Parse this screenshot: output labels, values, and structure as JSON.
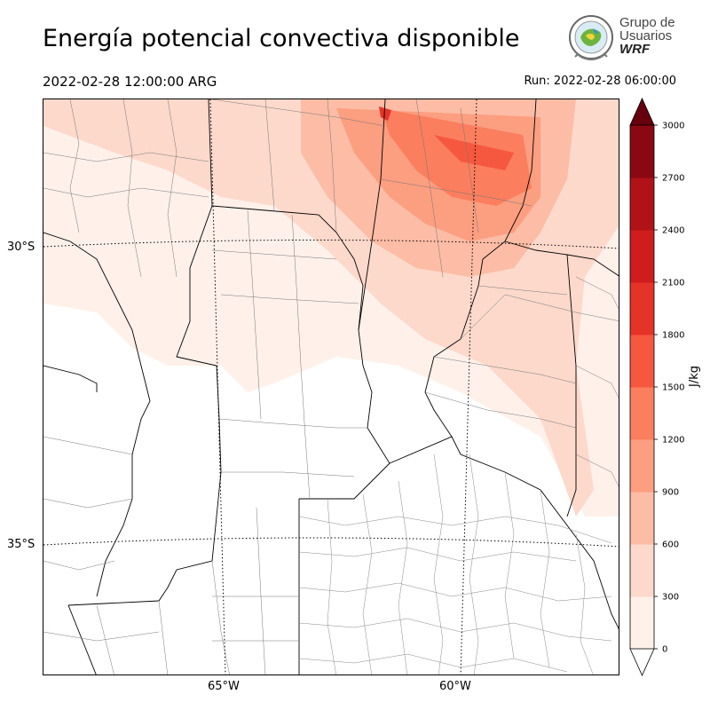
{
  "title": "Energía potencial convectiva disponible",
  "valid_time": "2022-02-28 12:00:00 ARG",
  "run_time": "Run: 2022-02-28 06:00:00",
  "logo": {
    "line1": "Grupo de",
    "line2": "Usuarios",
    "line3": "WRF"
  },
  "axes": {
    "lat_labels": [
      "30°S",
      "35°S"
    ],
    "lon_labels": [
      "65°W",
      "60°W"
    ]
  },
  "colorbar": {
    "unit_label": "J/kg",
    "ticks": [
      "0",
      "300",
      "600",
      "900",
      "1200",
      "1500",
      "1800",
      "2100",
      "2400",
      "2700",
      "3000"
    ],
    "colors": [
      "#fff0ea",
      "#fdd9cb",
      "#fcbca5",
      "#fc9e80",
      "#fb7e5e",
      "#f6583f",
      "#e63328",
      "#cf1d1e",
      "#b01217",
      "#8a0812"
    ],
    "extend_max_color": "#67000d",
    "extend_min_color": "#ffffff"
  }
}
